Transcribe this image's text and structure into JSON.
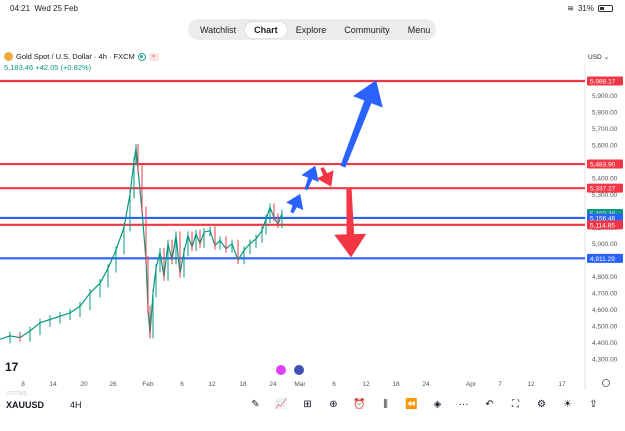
{
  "status": {
    "time": "04:21",
    "date": "Wed 25 Feb",
    "battery": "31%"
  },
  "nav": {
    "tabs": [
      "Watchlist",
      "Chart",
      "Explore",
      "Community",
      "Menu"
    ],
    "active": "Chart"
  },
  "symbol": {
    "title": "Gold Spot / U.S. Dollar · 4h · FXCM",
    "price": "5,183.46",
    "change": "+42.05 (+0.82%)"
  },
  "currency": "USD",
  "colors": {
    "up": "#089981",
    "down": "#f23645",
    "red_line": "#f23645",
    "blue_line": "#2962ff",
    "arrow_blue": "#2962ff",
    "arrow_red": "#f23645"
  },
  "price_axis": {
    "ticks": [
      "5,900.00",
      "5,800.00",
      "5,700.00",
      "5,600.00",
      "5,500.00",
      "5,400.00",
      "5,300.00",
      "5,200.00",
      "5,100.00",
      "5,000.00",
      "4,900.00",
      "4,800.00",
      "4,700.00",
      "4,600.00",
      "4,500.00",
      "4,400.00",
      "4,300.00"
    ],
    "labels": [
      {
        "text": "5,988.17",
        "value": 5988.17,
        "color": "red"
      },
      {
        "text": "5,483.90",
        "value": 5483.9,
        "color": "red"
      },
      {
        "text": "5,337.27",
        "value": 5337.27,
        "color": "red"
      },
      {
        "text": "5,183.46",
        "value": 5183.46,
        "color": "green"
      },
      {
        "text": "5,156.46",
        "value": 5156.46,
        "color": "blue"
      },
      {
        "text": "5,114.85",
        "value": 5114.85,
        "color": "red"
      },
      {
        "text": "4,911.29",
        "value": 4911.29,
        "color": "blue"
      }
    ]
  },
  "horizontal_lines": [
    {
      "value": 5988.17,
      "color": "red"
    },
    {
      "value": 5483.9,
      "color": "red"
    },
    {
      "value": 5337.27,
      "color": "red"
    },
    {
      "value": 5156.46,
      "color": "blue"
    },
    {
      "value": 5114.85,
      "color": "red"
    },
    {
      "value": 4911.29,
      "color": "blue"
    }
  ],
  "time_axis": [
    "8",
    "14",
    "20",
    "26",
    "Feb",
    "6",
    "12",
    "18",
    "24",
    "Mar",
    "6",
    "12",
    "18",
    "24",
    "Apr",
    "7",
    "12",
    "17"
  ],
  "bottom": {
    "symbol": "XAUUSD",
    "timeframe": "4H",
    "ghost": "UTCTMS",
    "tools": [
      "pencil-icon",
      "indicators-icon",
      "grid-icon",
      "add-icon",
      "alarm-icon",
      "candles-icon",
      "rewind-icon",
      "layers-icon",
      "more-icon",
      "undo-icon",
      "fullscreen-icon",
      "settings-icon",
      "lightbulb-icon",
      "share-icon"
    ]
  },
  "tv_logo": "17"
}
